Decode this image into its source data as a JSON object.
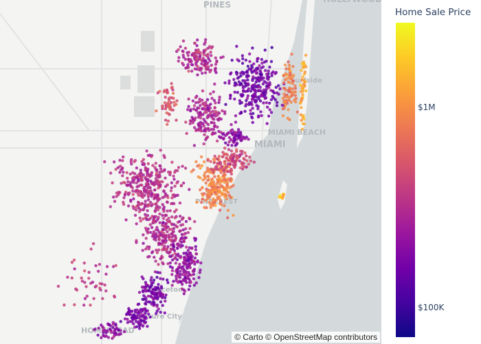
{
  "map": {
    "labels": [
      "PINES",
      "HOLLYWOOD",
      "Surfside",
      "MIAMI BEACH",
      "MIAMI",
      "PINECREST",
      "Princeton",
      "Leisure City",
      "HOMESTEAD"
    ],
    "attribution": "© Carto © OpenStreetMap contributors",
    "land_color": "#f4f4f2",
    "water_color": "#d4dadc"
  },
  "colorbar": {
    "title": "Home Sale Price",
    "colorscale": "Plasma",
    "scale": "log",
    "ticks": [
      "$1M",
      "$100K"
    ]
  }
}
